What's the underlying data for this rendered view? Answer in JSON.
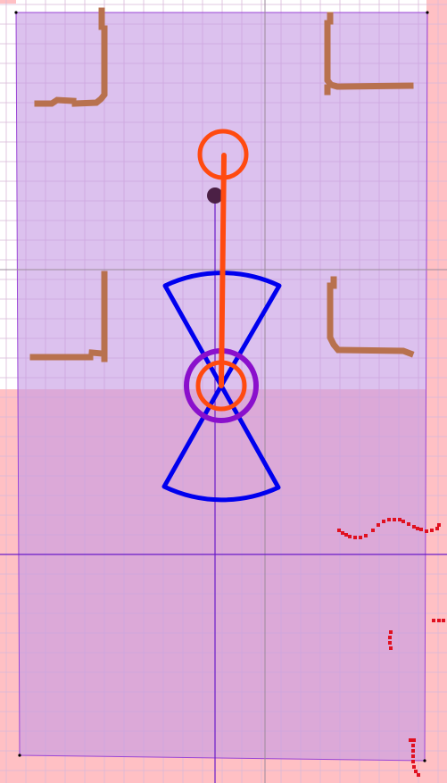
{
  "colors": {
    "background": "#ffffff",
    "costmap_pink": "#ffc0c4",
    "grid_line": "#d9b9d9",
    "axis_gray": "#9b8a9b",
    "footprint_fill": "#c79be3",
    "footprint_stroke": "#9a45d6",
    "wall": "#b8714e",
    "goal_orange": "#ff4a10",
    "sensor_blue": "#0000ee",
    "robot_purple": "#8a10cc",
    "laser_red": "#e01020",
    "marker_dark": "#4b2045",
    "crosshair": "#6a1cc7"
  },
  "viewer": {
    "layers": [
      "costmap",
      "grid",
      "footprint",
      "walls",
      "laser-scan",
      "sonar-cones",
      "robot",
      "goal-path"
    ],
    "grid_visible": true
  }
}
